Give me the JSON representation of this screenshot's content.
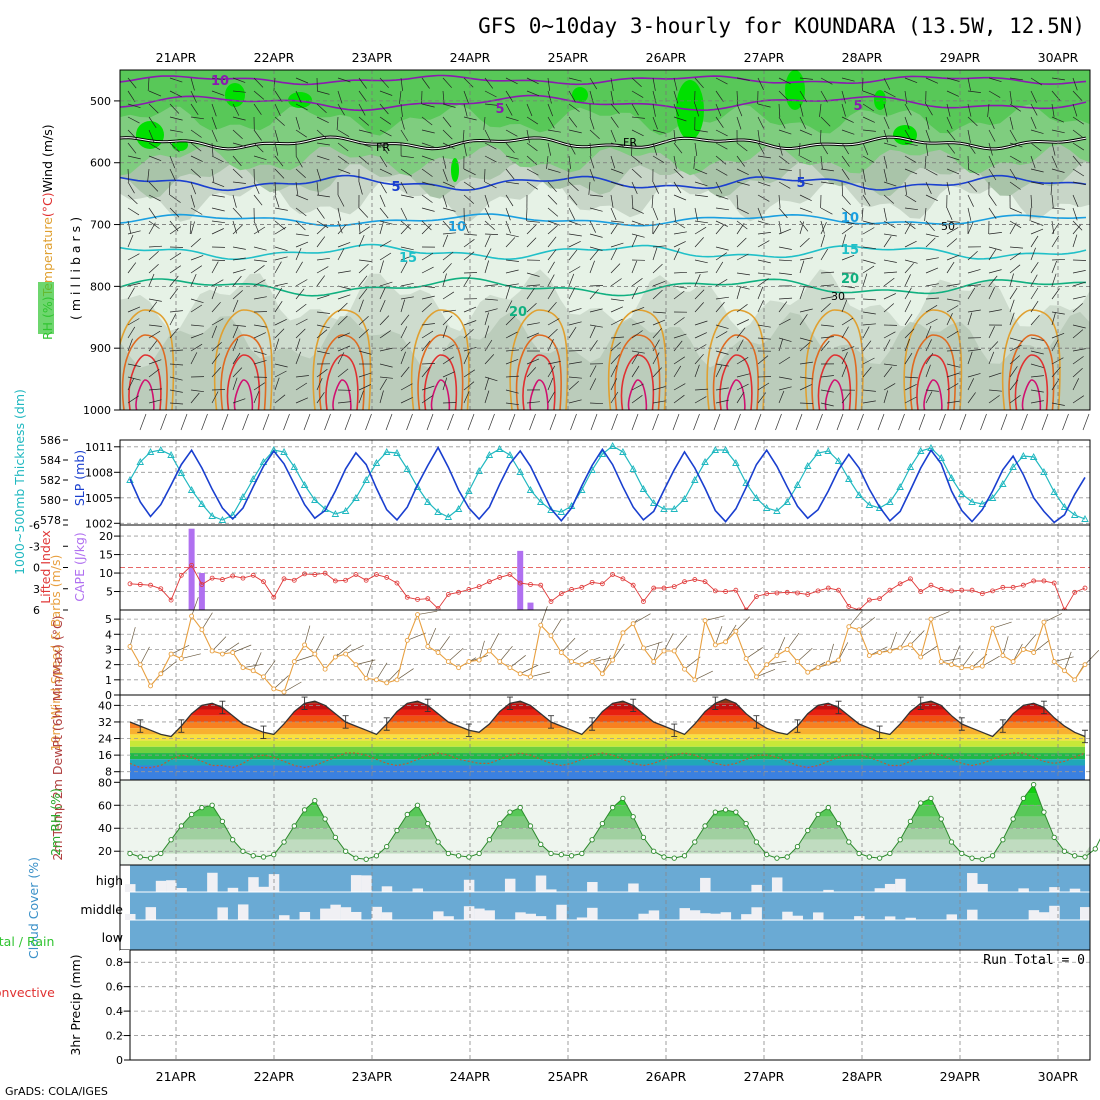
{
  "title": "GFS 0~10day 3-hourly for KOUNDARA (13.5W, 12.5N)",
  "credit": "GrADS: COLA/IGES",
  "dates": [
    "21APR",
    "22APR",
    "23APR",
    "24APR",
    "25APR",
    "26APR",
    "27APR",
    "28APR",
    "29APR",
    "30APR"
  ],
  "colors": {
    "rh_green": "#31c431",
    "temp_orange": "#e0a030",
    "temp_red": "#e03030",
    "wind_purple": "#8a1ab0",
    "slp_blue": "#1a3fcf",
    "thickness_cyan": "#20b8c0",
    "cape_violet": "#b070f0",
    "li_red": "#e03838",
    "wind10_orange": "#e8a040",
    "cloud_blue": "#6aaad4",
    "cloud_white": "#f0f0f4"
  },
  "chart_data": [
    {
      "id": "upper",
      "type": "heatmap",
      "y_ticks": [
        "500",
        "600",
        "700",
        "800",
        "900",
        "1000"
      ],
      "ylim": [
        450,
        1000
      ],
      "y_title_parts": [
        {
          "text": "RH (%)",
          "color": "#31c431"
        },
        {
          "text": "Temperature",
          "color": "#e0a030"
        },
        {
          "text": "(°C)",
          "color": "#e03030"
        },
        {
          "text": "Wind (m/s)",
          "color": "#000000"
        }
      ],
      "y_unit": "(millibars)",
      "wind_contours": [
        "10",
        "5",
        "5",
        "5"
      ],
      "temp_contours": [
        "5",
        "5",
        "10",
        "10",
        "15",
        "15",
        "20",
        "20",
        "30",
        "50"
      ],
      "freezing_label": "FR"
    },
    {
      "id": "slp",
      "type": "line",
      "ylabel_left": "1000~500mb Thickness (dm)",
      "ylabel_right": "SLP (mb)",
      "left_ticks": [
        "578",
        "580",
        "582",
        "584",
        "586"
      ],
      "left_lim": [
        577.5,
        586
      ],
      "right_ticks": [
        "1002",
        "1005",
        "1008",
        "1011"
      ],
      "right_lim": [
        1001.8,
        1011.8
      ],
      "series": [
        {
          "name": "SLP",
          "values": [
            1007.2,
            1004.5,
            1002.8,
            1004.2,
            1006.5,
            1008.9,
            1010.6,
            1008.5,
            1006.0,
            1003.8,
            1002.5,
            1003.8,
            1006.3,
            1008.7,
            1010.5,
            1009.0,
            1006.6,
            1004.2,
            1002.6,
            1003.5,
            1005.8,
            1008.4,
            1010.3,
            1008.9,
            1006.1,
            1003.6,
            1002.4,
            1003.9,
            1006.5,
            1008.8,
            1010.9,
            1008.6,
            1005.9,
            1003.8,
            1002.5,
            1003.9,
            1006.6,
            1009.0,
            1010.5,
            1008.7,
            1006.2,
            1003.7,
            1002.3,
            1003.8,
            1006.4,
            1008.8,
            1010.7,
            1008.9,
            1006.3,
            1003.9,
            1002.4,
            1003.4,
            1005.9,
            1008.3,
            1010.4,
            1008.5,
            1006.1,
            1003.5,
            1002.2,
            1003.7,
            1006.2,
            1008.9,
            1010.6,
            1008.7,
            1006.3,
            1004.0,
            1002.6,
            1003.6,
            1005.8,
            1008.3,
            1010.1,
            1008.5,
            1006.0,
            1003.9,
            1002.3,
            1003.4,
            1005.9,
            1008.5,
            1010.6,
            1009.0,
            1005.8,
            1003.5,
            1002.2,
            1003.6,
            1005.8,
            1008.3,
            1009.9,
            1007.7,
            1005.0,
            1003.4,
            1002.1,
            1003.0,
            1005.4,
            1007.4
          ]
        },
        {
          "name": "Thickness",
          "values": [
            582.0,
            583.8,
            584.8,
            585.0,
            584.5,
            582.7,
            581.0,
            579.6,
            578.4,
            578.0,
            578.5,
            580.3,
            582.1,
            583.8,
            585.0,
            584.8,
            583.3,
            581.5,
            580.0,
            579.1,
            578.6,
            578.9,
            580.2,
            582.0,
            583.7,
            584.8,
            584.7,
            583.1,
            581.3,
            579.8,
            578.8,
            578.3,
            579.1,
            580.9,
            582.9,
            584.5,
            585.1,
            584.5,
            582.8,
            581.0,
            579.8,
            579.0,
            578.8,
            579.4,
            581.0,
            583.0,
            584.6,
            585.4,
            584.8,
            583.1,
            581.1,
            579.7,
            579.1,
            579.1,
            580.1,
            582.0,
            583.8,
            585.0,
            585.0,
            583.7,
            581.7,
            580.2,
            579.2,
            578.9,
            579.8,
            581.5,
            583.4,
            584.7,
            584.9,
            583.9,
            582.1,
            580.5,
            579.5,
            579.2,
            579.8,
            581.3,
            583.3,
            584.9,
            585.2,
            584.2,
            582.2,
            580.6,
            579.8,
            579.6,
            580.2,
            581.6,
            583.3,
            584.4,
            584.3,
            582.8,
            580.8,
            579.3,
            578.5,
            578.1
          ]
        }
      ]
    },
    {
      "id": "cape",
      "type": "bar",
      "ylabel_left": "Lifted Index",
      "ylabel_right": "CAPE (J/kg)",
      "left_ticks": [
        "-6",
        "-3",
        "0",
        "3",
        "6"
      ],
      "left_lim": [
        -6,
        6
      ],
      "right_ticks": [
        "20",
        "15",
        "10",
        "5"
      ],
      "cape_lim": [
        0,
        23
      ],
      "series": [
        {
          "name": "CAPE",
          "values": [
            0,
            0,
            0,
            0,
            0,
            0,
            22,
            10,
            0,
            0,
            0,
            0,
            0,
            0,
            0,
            0,
            0,
            0,
            0,
            0,
            0,
            0,
            0,
            0,
            0,
            0,
            0,
            0,
            0,
            0,
            0,
            0,
            0,
            0,
            0,
            0,
            0,
            0,
            16,
            2,
            0,
            0,
            0,
            0,
            0,
            0,
            0,
            0,
            0,
            0,
            0,
            0,
            0,
            0,
            0,
            0,
            0,
            0,
            0,
            0,
            0,
            0,
            0,
            0,
            0,
            0,
            0,
            0,
            0,
            0,
            0,
            0,
            0,
            0,
            0,
            0,
            0,
            0,
            0,
            0,
            0,
            0,
            0,
            0,
            0,
            0,
            0,
            0,
            0,
            0,
            0,
            0,
            0,
            0
          ]
        },
        {
          "name": "Lifted Index",
          "values": [
            2.3,
            2.4,
            2.5,
            3.0,
            4.6,
            1.1,
            -0.3,
            2.4,
            1.5,
            1.7,
            1.2,
            1.5,
            1.1,
            2.0,
            4.2,
            1.6,
            1.8,
            0.9,
            1.0,
            0.8,
            1.9,
            1.8,
            1.0,
            1.8,
            1.0,
            1.4,
            2.2,
            4.2,
            4.5,
            4.4,
            5.8,
            3.8,
            3.5,
            3.1,
            2.7,
            2.0,
            1.4,
            1.0,
            2.2,
            2.4,
            2.5,
            4.8,
            3.7,
            3.1,
            2.8,
            2.1,
            2.3,
            1.0,
            1.6,
            2.5,
            4.8,
            2.9,
            2.9,
            2.7,
            2.0,
            1.7,
            2.0,
            3.3,
            3.4,
            3.2,
            6.0,
            4.1,
            3.7,
            3.6,
            3.5,
            3.6,
            3.8,
            3.3,
            2.9,
            3.2,
            5.5,
            6.0,
            4.6,
            4.4,
            3.2,
            2.3,
            1.6,
            3.4,
            2.5,
            3.1,
            3.3,
            3.2,
            3.2,
            3.7,
            3.3,
            2.8,
            2.8,
            2.5,
            1.9,
            1.9,
            2.2,
            6.0,
            3.5,
            2.9
          ]
        }
      ]
    },
    {
      "id": "wind10",
      "type": "line",
      "ylabel": "10m Wind Speed & Barbs (m/s)",
      "y_ticks": [
        "0",
        "1",
        "2",
        "3",
        "4",
        "5"
      ],
      "ylim": [
        0,
        5.6
      ],
      "series": [
        {
          "name": "Wind Speed",
          "values": [
            3.2,
            2.0,
            0.6,
            1.4,
            2.7,
            2.4,
            5.2,
            4.3,
            2.9,
            2.7,
            2.8,
            1.8,
            1.6,
            1.2,
            0.4,
            0.2,
            2.2,
            3.3,
            2.7,
            1.7,
            2.5,
            2.7,
            2.0,
            1.1,
            1.0,
            0.8,
            1.0,
            3.6,
            5.3,
            3.2,
            2.8,
            2.2,
            1.8,
            2.2,
            2.3,
            2.9,
            2.2,
            1.8,
            1.4,
            1.2,
            4.6,
            3.9,
            2.8,
            2.2,
            2.0,
            2.2,
            1.4,
            2.3,
            4.1,
            4.7,
            3.1,
            2.2,
            2.9,
            2.9,
            1.7,
            1.0,
            4.9,
            3.3,
            3.5,
            4.2,
            2.4,
            1.2,
            2.0,
            2.6,
            3.0,
            2.2,
            1.5,
            1.8,
            2.1,
            2.3,
            4.5,
            4.3,
            2.6,
            2.8,
            2.9,
            3.1,
            3.3,
            2.5,
            5.0,
            2.2,
            2.0,
            1.8,
            1.8,
            1.9,
            4.4,
            2.6,
            2.2,
            3.0,
            2.8,
            4.8,
            2.2,
            1.6,
            1.0,
            2.0
          ]
        }
      ]
    },
    {
      "id": "temp2m",
      "type": "area",
      "ylabel": "2m Temp 2m DewPt (6hr Min/Max) (°C)",
      "y_ticks": [
        "8",
        "16",
        "24",
        "32",
        "40"
      ],
      "ylim": [
        4,
        45
      ],
      "series": [
        {
          "name": "2m Temp",
          "values": [
            32,
            30,
            28,
            26,
            25,
            30,
            36,
            40,
            41,
            39,
            35,
            31,
            29,
            27,
            26,
            31,
            37,
            41,
            42,
            40,
            36,
            32,
            30,
            28,
            26,
            31,
            37,
            41,
            42,
            40,
            36,
            32,
            30,
            28,
            27,
            31,
            37,
            41,
            42,
            40,
            36,
            32,
            30,
            28,
            26,
            31,
            37,
            41,
            42,
            40,
            36,
            32,
            30,
            28,
            26,
            31,
            37,
            41,
            43,
            41,
            36,
            32,
            29,
            27,
            26,
            30,
            36,
            40,
            41,
            39,
            35,
            31,
            29,
            27,
            26,
            31,
            37,
            41,
            42,
            40,
            35,
            31,
            29,
            27,
            25,
            30,
            36,
            40,
            41,
            39,
            34,
            30,
            27,
            25
          ]
        },
        {
          "name": "2m DewPt",
          "values": [
            12,
            10,
            10,
            11,
            14,
            16,
            15,
            13,
            11,
            11,
            10,
            12,
            15,
            16,
            15,
            13,
            11,
            10,
            11,
            13,
            15,
            17,
            17,
            16,
            14,
            12,
            11,
            12,
            14,
            16,
            17,
            16,
            14,
            13,
            12,
            12,
            14,
            16,
            17,
            16,
            14,
            12,
            11,
            12,
            14,
            16,
            17,
            16,
            14,
            12,
            11,
            12,
            14,
            16,
            17,
            16,
            14,
            12,
            11,
            12,
            14,
            16,
            16,
            15,
            13,
            11,
            10,
            11,
            13,
            15,
            16,
            16,
            15,
            13,
            11,
            11,
            13,
            15,
            17,
            16,
            14,
            12,
            11,
            12,
            14,
            16,
            17,
            17,
            15,
            13,
            12,
            13,
            15,
            17
          ]
        }
      ]
    },
    {
      "id": "rh2m",
      "type": "area",
      "ylabel": "2m RH (%)",
      "y_ticks": [
        "20",
        "40",
        "60",
        "80"
      ],
      "ylim": [
        8,
        82
      ],
      "series": [
        {
          "name": "2m RH",
          "values": [
            18,
            15,
            14,
            18,
            30,
            42,
            52,
            58,
            60,
            46,
            30,
            20,
            16,
            15,
            17,
            28,
            42,
            56,
            64,
            48,
            32,
            20,
            14,
            13,
            16,
            24,
            38,
            52,
            60,
            44,
            28,
            18,
            16,
            15,
            18,
            30,
            44,
            54,
            58,
            42,
            26,
            18,
            17,
            16,
            18,
            30,
            44,
            58,
            66,
            50,
            32,
            20,
            15,
            14,
            16,
            28,
            42,
            54,
            56,
            54,
            44,
            28,
            17,
            14,
            15,
            24,
            38,
            52,
            58,
            44,
            28,
            18,
            15,
            14,
            18,
            30,
            46,
            62,
            66,
            48,
            28,
            18,
            14,
            13,
            16,
            30,
            48,
            66,
            78,
            54,
            32,
            20,
            16,
            15,
            22,
            40,
            60,
            74
          ]
        }
      ]
    },
    {
      "id": "cloud",
      "type": "heatmap",
      "ylabel": "Cloud Cover (%)",
      "levels": [
        "high",
        "middle",
        "low"
      ]
    },
    {
      "id": "precip",
      "type": "bar",
      "ylabel_parts": [
        {
          "text": "Total / Rain",
          "color": "#31c431"
        },
        {
          "text": "Convective",
          "color": "#e03030"
        },
        {
          "text": "3hr Precip (mm)",
          "color": "#000000"
        }
      ],
      "y_ticks": [
        "0",
        "0.2",
        "0.4",
        "0.6",
        "0.8"
      ],
      "ylim": [
        0,
        0.9
      ],
      "run_total": "Run Total = 0",
      "series": [
        {
          "name": "Total",
          "values": []
        },
        {
          "name": "Convective",
          "values": []
        }
      ]
    }
  ]
}
